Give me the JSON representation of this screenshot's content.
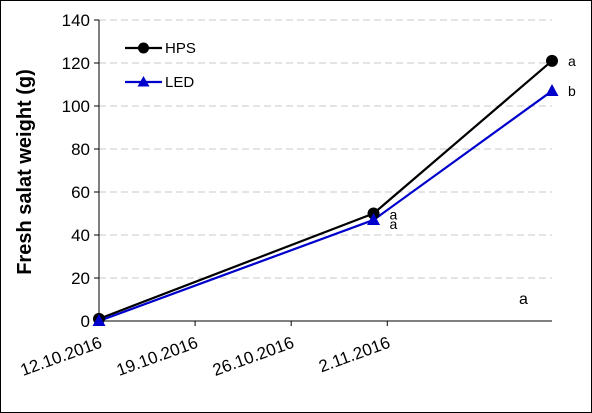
{
  "chart_data": {
    "type": "line",
    "ylabel": "Fresh salat weight (g)",
    "ylim": [
      0,
      140
    ],
    "yticks": [
      0,
      20,
      40,
      60,
      80,
      100,
      120,
      140
    ],
    "xlim": [
      "2016-10-12",
      "2016-11-14"
    ],
    "xticks": [
      "12.10.2016",
      "19.10.2016",
      "26.10.2016",
      "2.11.2016"
    ],
    "grid": "horizontal dashed",
    "legend_placement": "top-left",
    "series": [
      {
        "name": "HPS",
        "color": "#000000",
        "marker": "circle",
        "x": [
          "2016-10-12",
          "2016-11-01",
          "2016-11-14"
        ],
        "y": [
          1,
          50,
          121
        ]
      },
      {
        "name": "LED",
        "color": "#0000cc",
        "marker": "triangle",
        "x": [
          "2016-10-12",
          "2016-11-01",
          "2016-11-14"
        ],
        "y": [
          0,
          47,
          107
        ]
      }
    ],
    "annotations": [
      {
        "text": "a",
        "series": "HPS",
        "point": 1
      },
      {
        "text": "a",
        "series": "LED",
        "point": 1
      },
      {
        "text": "a",
        "series": "HPS",
        "point": 2
      },
      {
        "text": "b",
        "series": "LED",
        "point": 2
      },
      {
        "text": "a",
        "place": "lower-right"
      }
    ]
  }
}
